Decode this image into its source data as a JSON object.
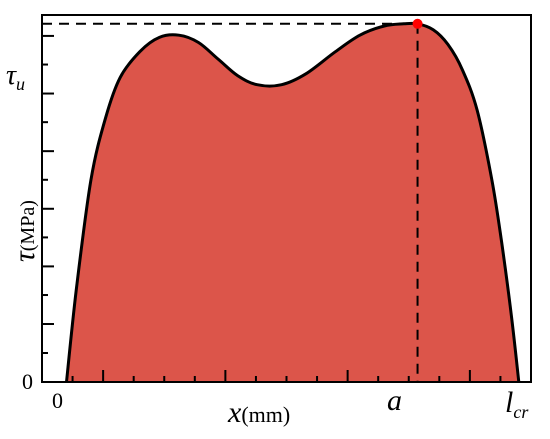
{
  "chart_data": {
    "type": "area",
    "title": "",
    "xlabel": {
      "symbol": "x",
      "unit": "(mm)"
    },
    "ylabel": {
      "symbol": "τ",
      "unit": "(MPa)"
    },
    "xlim": [
      0,
      10
    ],
    "ylim": [
      0,
      10
    ],
    "x_tick_labels": [
      {
        "text": "0",
        "value": 0
      }
    ],
    "y_tick_labels": [
      {
        "text": "0",
        "value": 0
      }
    ],
    "special_x_labels": [
      {
        "symbol": "a",
        "value": 7.68
      },
      {
        "symbol": "l",
        "subscript": "cr",
        "value": 10
      }
    ],
    "special_y_labels": [
      {
        "symbol": "τ",
        "subscript": "u",
        "value": 9.76
      }
    ],
    "x_major_ticks": [
      1.25,
      3.75,
      6.25,
      8.75
    ],
    "x_minor_ticks": [
      0.625,
      1.875,
      2.5,
      3.125,
      4.375,
      5.0,
      5.625,
      6.875,
      7.5,
      8.125,
      9.375
    ],
    "y_major_ticks": [
      1.58,
      3.15,
      4.72,
      6.29,
      7.86,
      9.43
    ],
    "y_minor_ticks": [
      0.79,
      2.37,
      3.94,
      5.51,
      7.08,
      8.65
    ],
    "series": [
      {
        "fill_color": "#dc554a",
        "line_color": "#000000",
        "x": [
          0.5,
          0.7,
          1.0,
          1.3,
          1.6,
          2.0,
          2.4,
          2.8,
          3.2,
          3.6,
          4.0,
          4.4,
          4.9,
          5.4,
          6.0,
          6.5,
          7.0,
          7.4,
          7.68,
          8.0,
          8.3,
          8.6,
          8.9,
          9.2,
          9.4,
          9.6,
          9.75
        ],
        "y": [
          0.0,
          2.5,
          5.5,
          7.2,
          8.3,
          9.0,
          9.39,
          9.45,
          9.25,
          8.8,
          8.35,
          8.1,
          8.1,
          8.4,
          9.0,
          9.45,
          9.7,
          9.76,
          9.76,
          9.6,
          9.2,
          8.5,
          7.4,
          5.5,
          3.8,
          1.8,
          0.0
        ]
      }
    ],
    "peak_point": {
      "x": 7.68,
      "y": 9.76,
      "color": "#ff0000"
    },
    "reference_lines": [
      {
        "orientation": "horizontal",
        "value": 9.76,
        "style": "dashed"
      },
      {
        "orientation": "vertical",
        "value": 7.68,
        "style": "dashed"
      }
    ],
    "grid": false,
    "legend": "none"
  }
}
